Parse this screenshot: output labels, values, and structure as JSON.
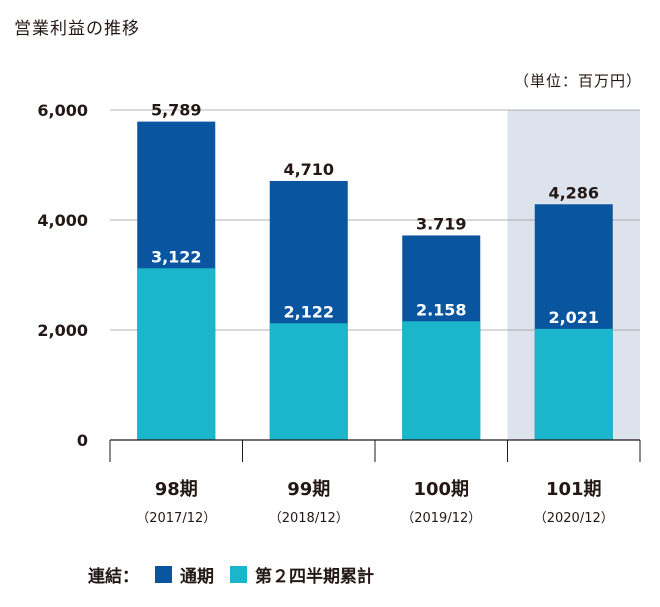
{
  "title": "営業利益の推移",
  "unit": "（単位：百万円）",
  "colors": {
    "annual": "#0a55a0",
    "q2": "#1cb6cc",
    "highlight": "#dde3ec",
    "grid": "#9a9a9a",
    "axis": "#231815"
  },
  "legend": {
    "prefix": "連結：",
    "items": [
      "通期",
      "第２四半期累計"
    ]
  },
  "chart_data": {
    "type": "bar",
    "stacking": "overlay",
    "categories": [
      "98期",
      "99期",
      "100期",
      "101期"
    ],
    "sublabels": [
      "（2017/12）",
      "（2018/12）",
      "（2019/12）",
      "（2020/12）"
    ],
    "series": [
      {
        "name": "通期",
        "values": [
          5789,
          4710,
          3719,
          4286
        ],
        "labels": [
          "5,789",
          "4,710",
          "3.719",
          "4,286"
        ]
      },
      {
        "name": "第２四半期累計",
        "values": [
          3122,
          2122,
          2158,
          2021
        ],
        "labels": [
          "3,122",
          "2,122",
          "2.158",
          "2,021"
        ]
      }
    ],
    "yticks": [
      "6,000",
      "4,000",
      "2,000",
      "0"
    ],
    "ytick_values": [
      6000,
      4000,
      2000,
      0
    ],
    "ylim": [
      0,
      6000
    ],
    "highlight_category": "101期",
    "grid": true
  }
}
